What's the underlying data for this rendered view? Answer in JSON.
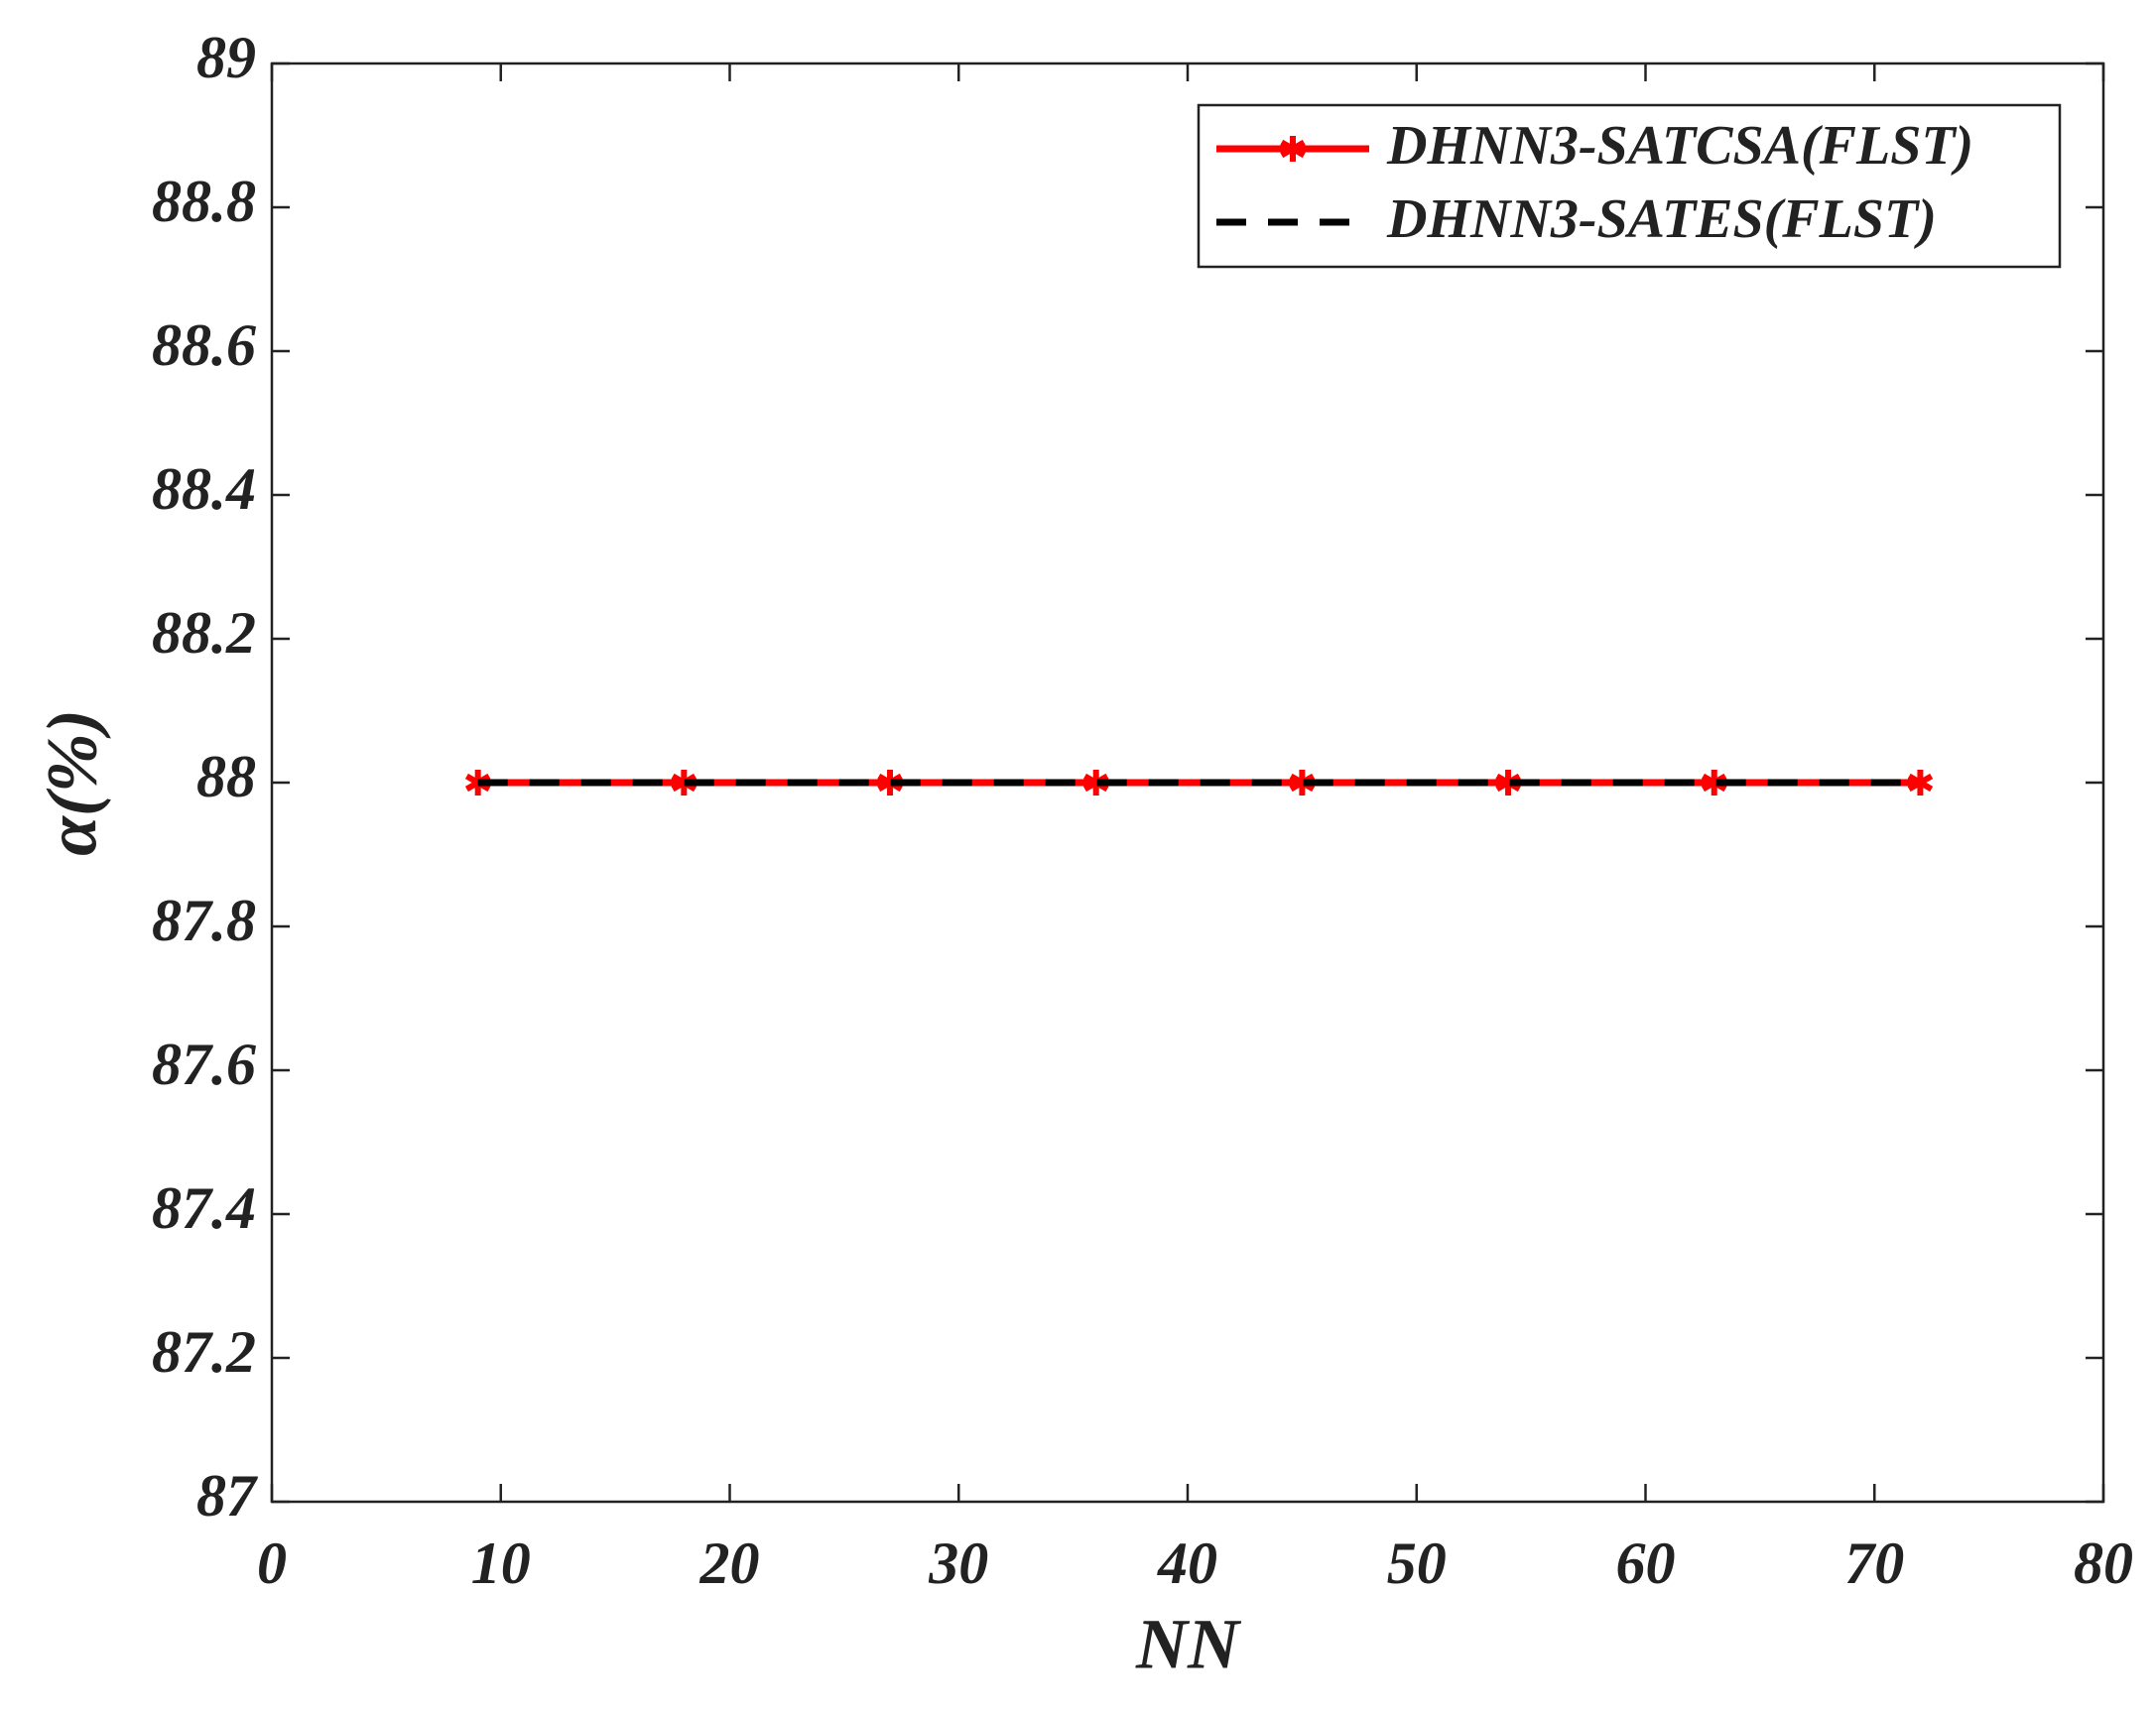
{
  "chart_data": {
    "type": "line",
    "x_label": "NN",
    "y_label": "α(%)",
    "x": [
      9,
      18,
      27,
      36,
      45,
      54,
      63,
      72
    ],
    "series": [
      {
        "name": "DHNN3-SATCSA(FLST)",
        "color": "#ff0000",
        "linestyle": "solid",
        "marker": "asterisk",
        "values": [
          88,
          88,
          88,
          88,
          88,
          88,
          88,
          88
        ]
      },
      {
        "name": "DHNN3-SATES(FLST)",
        "color": "#000000",
        "linestyle": "dashed",
        "marker": "none",
        "values": [
          88,
          88,
          88,
          88,
          88,
          88,
          88,
          88
        ]
      }
    ],
    "xlim": [
      0,
      80
    ],
    "xticks": [
      0,
      10,
      20,
      30,
      40,
      50,
      60,
      70,
      80
    ],
    "ylim": [
      87,
      89
    ],
    "yticks": [
      87,
      87.2,
      87.4,
      87.6,
      87.8,
      88,
      88.2,
      88.4,
      88.6,
      88.8,
      89
    ],
    "grid": false,
    "legend": "upper right"
  }
}
